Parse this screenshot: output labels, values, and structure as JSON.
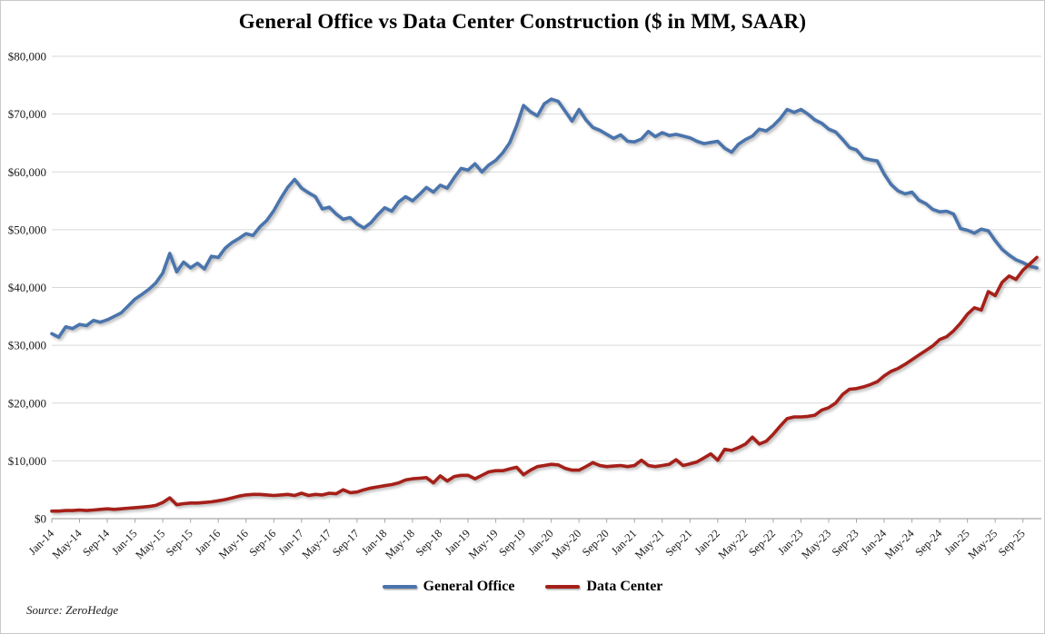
{
  "chart_data": {
    "type": "line",
    "title": "General Office vs Data Center Construction ($ in MM, SAAR)",
    "ylim": [
      0,
      80000
    ],
    "grid": "horizontal-only",
    "legend_position": "bottom-center",
    "y_ticks": [
      0,
      10000,
      20000,
      30000,
      40000,
      50000,
      60000,
      70000,
      80000
    ],
    "y_tick_labels": [
      "$0",
      "$10,000",
      "$20,000",
      "$30,000",
      "$40,000",
      "$50,000",
      "$60,000",
      "$70,000",
      "$80,000"
    ],
    "x_tick_every": 4,
    "x_tick_labels": [
      "Jan-14",
      "May-14",
      "Sep-14",
      "Jan-15",
      "May-15",
      "Sep-15",
      "Jan-16",
      "May-16",
      "Sep-16",
      "Jan-17",
      "May-17",
      "Sep-17",
      "Jan-18",
      "May-18",
      "Sep-18",
      "Jan-19",
      "May-19",
      "Sep-19",
      "Jan-20",
      "May-20",
      "Sep-20",
      "Jan-21",
      "May-21",
      "Sep-21",
      "Jan-22",
      "May-22",
      "Sep-22",
      "Jan-23",
      "May-23",
      "Sep-23",
      "Jan-24",
      "May-24",
      "Sep-24",
      "Jan-25",
      "May-25",
      "Sep-25"
    ],
    "x_period": "monthly, Jan-2014 through Nov-2025",
    "series": [
      {
        "name": "General Office",
        "color": "#4a74ac",
        "values": [
          32000,
          31400,
          33200,
          32900,
          33600,
          33400,
          34300,
          34000,
          34400,
          35000,
          35600,
          36800,
          38000,
          38800,
          39700,
          40800,
          42500,
          45900,
          42700,
          44400,
          43400,
          44200,
          43200,
          45400,
          45200,
          46800,
          47800,
          48500,
          49300,
          49000,
          50500,
          51600,
          53300,
          55400,
          57300,
          58700,
          57200,
          56400,
          55700,
          53600,
          53900,
          52700,
          51800,
          52100,
          51000,
          50300,
          51200,
          52600,
          53800,
          53200,
          54800,
          55700,
          55000,
          56100,
          57300,
          56500,
          57700,
          57200,
          59000,
          60600,
          60300,
          61400,
          60000,
          61200,
          62000,
          63300,
          65000,
          68000,
          71500,
          70400,
          69700,
          71800,
          72600,
          72200,
          70500,
          68800,
          70800,
          69000,
          67700,
          67200,
          66500,
          65800,
          66400,
          65300,
          65200,
          65700,
          67000,
          66100,
          66800,
          66300,
          66500,
          66200,
          65900,
          65300,
          64900,
          65100,
          65300,
          64100,
          63400,
          64800,
          65600,
          66200,
          67400,
          67100,
          68000,
          69200,
          70800,
          70300,
          70800,
          70000,
          69000,
          68400,
          67400,
          66900,
          65600,
          64200,
          63800,
          62400,
          62100,
          61900,
          59600,
          57800,
          56700,
          56200,
          56500,
          55100,
          54500,
          53500,
          53100,
          53200,
          52700,
          50200,
          49900,
          49400,
          50100,
          49800,
          48100,
          46600,
          45600,
          44800,
          44300,
          43700,
          43400
        ]
      },
      {
        "name": "Data Center",
        "color": "#a52019",
        "values": [
          1300,
          1300,
          1400,
          1400,
          1500,
          1400,
          1500,
          1600,
          1700,
          1600,
          1700,
          1800,
          1900,
          2000,
          2100,
          2300,
          2800,
          3600,
          2400,
          2600,
          2700,
          2700,
          2800,
          2900,
          3100,
          3300,
          3600,
          3900,
          4100,
          4200,
          4200,
          4100,
          4000,
          4100,
          4200,
          4000,
          4400,
          4000,
          4200,
          4100,
          4400,
          4300,
          5000,
          4500,
          4600,
          5000,
          5300,
          5500,
          5700,
          5900,
          6200,
          6700,
          6900,
          7000,
          7100,
          6200,
          7400,
          6500,
          7300,
          7500,
          7500,
          6900,
          7500,
          8100,
          8300,
          8300,
          8600,
          8900,
          7600,
          8400,
          9000,
          9200,
          9400,
          9300,
          8700,
          8400,
          8400,
          9000,
          9700,
          9200,
          9000,
          9100,
          9200,
          9000,
          9200,
          10100,
          9200,
          9000,
          9200,
          9400,
          10200,
          9200,
          9500,
          9800,
          10500,
          11200,
          10100,
          12000,
          11800,
          12300,
          12900,
          14100,
          12900,
          13400,
          14600,
          16000,
          17300,
          17600,
          17600,
          17700,
          17900,
          18800,
          19200,
          20000,
          21500,
          22400,
          22500,
          22800,
          23200,
          23700,
          24700,
          25500,
          26000,
          26700,
          27500,
          28300,
          29100,
          29900,
          31000,
          31500,
          32500,
          33800,
          35400,
          36500,
          36100,
          39300,
          38600,
          40900,
          42000,
          41400,
          43000,
          44100,
          45200
        ]
      }
    ]
  },
  "legend": {
    "items": [
      {
        "label": "General Office",
        "color": "#4a74ac"
      },
      {
        "label": "Data Center",
        "color": "#a52019"
      }
    ]
  },
  "source": {
    "label": "Source: ZeroHedge"
  },
  "style_colors": {
    "gridline": "#d9d9d9",
    "axis_line": "#a6a6a6",
    "tick_mark": "#a6a6a6",
    "axis_text": "#1a1a1a",
    "background": "#ffffff",
    "frame_border": "#c9c9c9"
  }
}
